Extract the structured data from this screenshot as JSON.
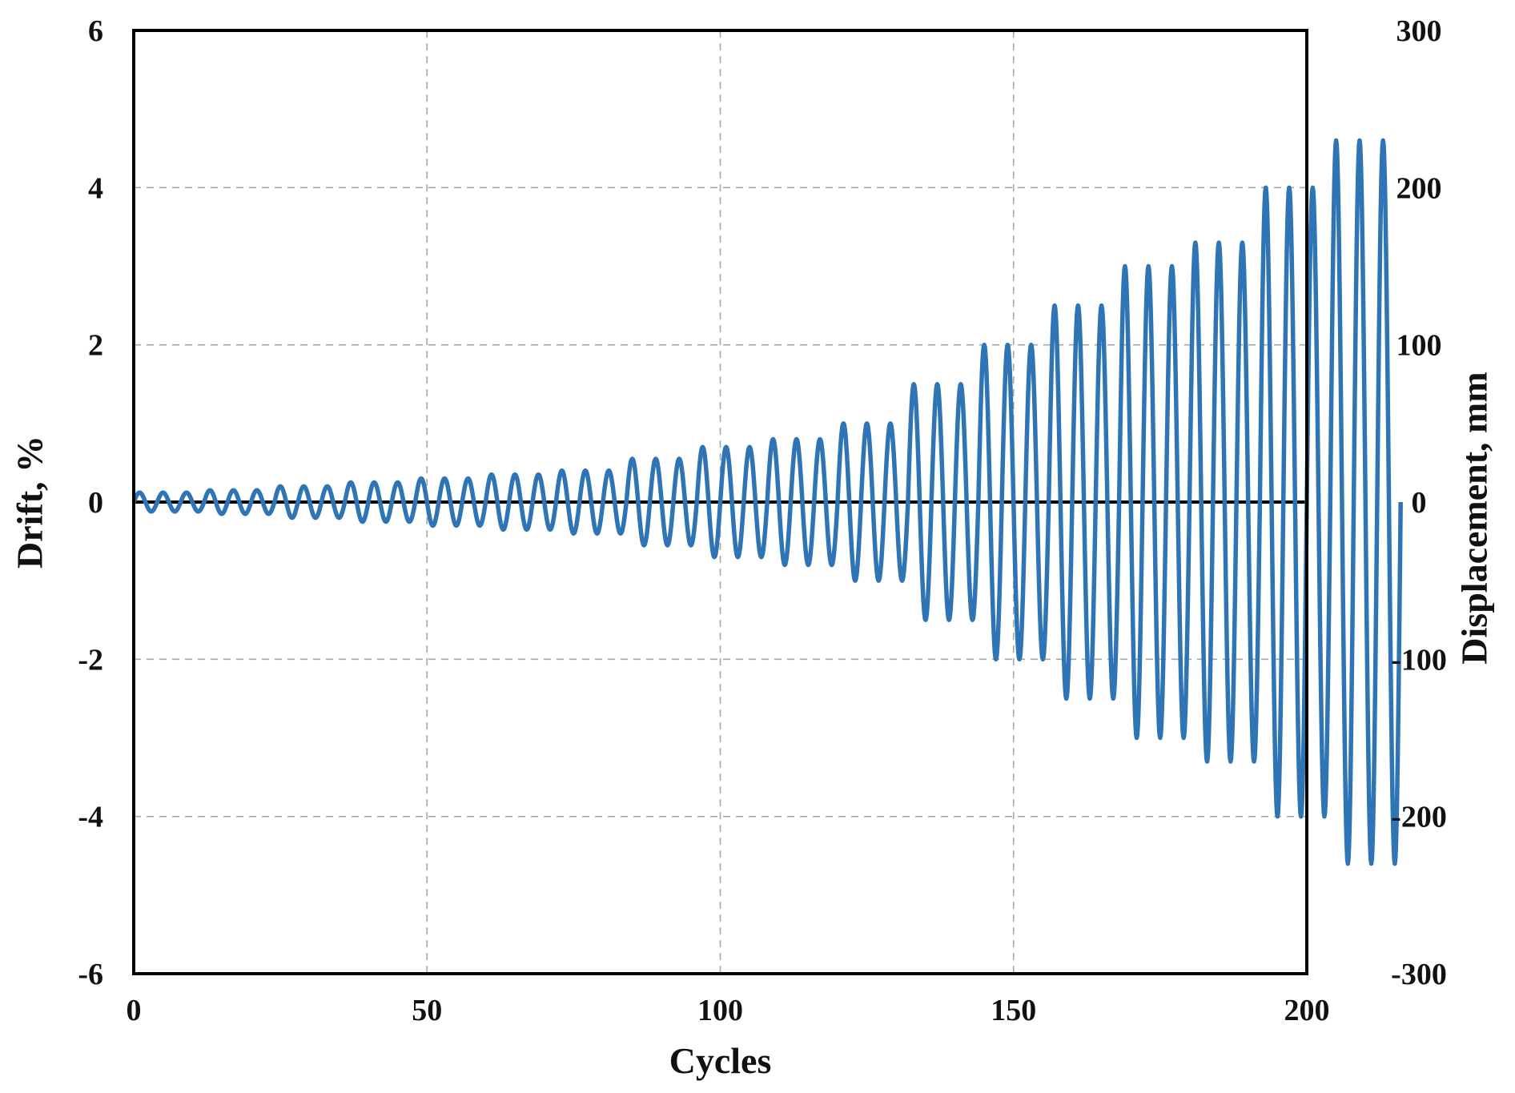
{
  "chart_data": {
    "type": "line",
    "title": "",
    "xlabel": "Cycles",
    "ylabel": "Drift, %",
    "y2label": "Displacement, mm",
    "xlim": [
      0,
      200
    ],
    "ylim": [
      -6,
      6
    ],
    "y2lim": [
      -300,
      300
    ],
    "x_ticks": [
      "0",
      "50",
      "100",
      "150",
      "200"
    ],
    "y_ticks": [
      "-6",
      "-4",
      "-2",
      "0",
      "2",
      "4",
      "6"
    ],
    "y2_ticks": [
      "-300",
      "-200",
      "-100",
      "0",
      "100",
      "200",
      "300"
    ],
    "grid": true,
    "legend": "none",
    "series": [
      {
        "color": "#2f75b5",
        "style": "sinusoidal cyclic loading, 3 cycles per amplitude level",
        "cycles_per_level": 3,
        "cycle_period": 4,
        "start_x": 0,
        "amplitude_levels_drift": [
          0.12,
          0.15,
          0.2,
          0.25,
          0.3,
          0.35,
          0.4,
          0.55,
          0.7,
          0.8,
          1.0,
          1.5,
          2.0,
          2.5,
          3.0,
          3.3,
          4.0,
          4.6
        ]
      }
    ]
  }
}
